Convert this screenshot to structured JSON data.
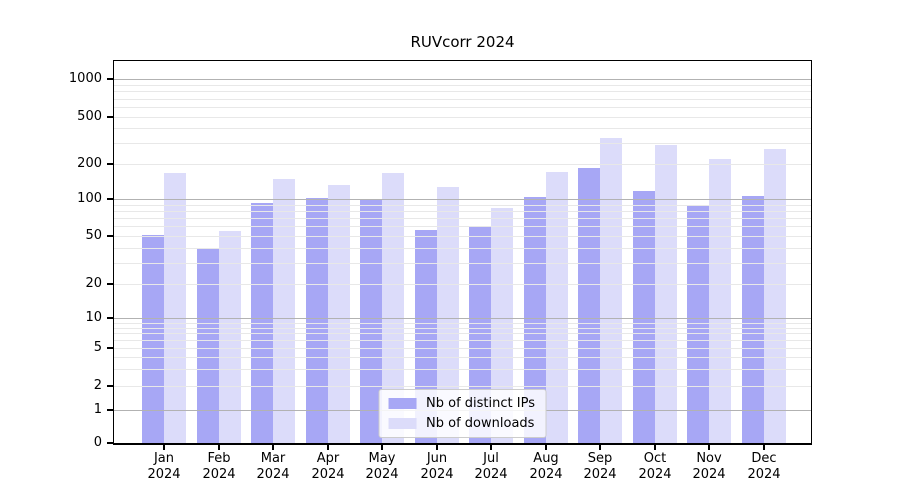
{
  "chart_data": {
    "type": "bar",
    "title": "RUVcorr 2024",
    "categories": [
      "Jan",
      "Feb",
      "Mar",
      "Apr",
      "May",
      "Jun",
      "Jul",
      "Aug",
      "Sep",
      "Oct",
      "Nov",
      "Dec"
    ],
    "x_year_label": "2024",
    "series": [
      {
        "name": "Nb of distinct IPs",
        "color": "#a7a7f5",
        "values": [
          51,
          39,
          92,
          101,
          99,
          56,
          59,
          104,
          185,
          117,
          88,
          106
        ]
      },
      {
        "name": "Nb of downloads",
        "color": "#dcdcfa",
        "values": [
          168,
          55,
          149,
          132,
          166,
          127,
          85,
          171,
          332,
          290,
          220,
          268
        ]
      }
    ],
    "y_axis": {
      "scale": "symlog",
      "tick_labels": [
        0,
        1,
        2,
        5,
        10,
        20,
        50,
        100,
        200,
        500,
        1000
      ],
      "ylim": [
        0,
        1440
      ],
      "grid": true
    },
    "legend": {
      "position": "lower center"
    },
    "colors": {
      "bar_distinct_ips": "#a7a7f5",
      "bar_downloads": "#dcdcfa",
      "grid_major": "#b2b2b2",
      "grid_minor": "#e8e8e8",
      "axis": "#000000",
      "background": "#ffffff"
    }
  }
}
